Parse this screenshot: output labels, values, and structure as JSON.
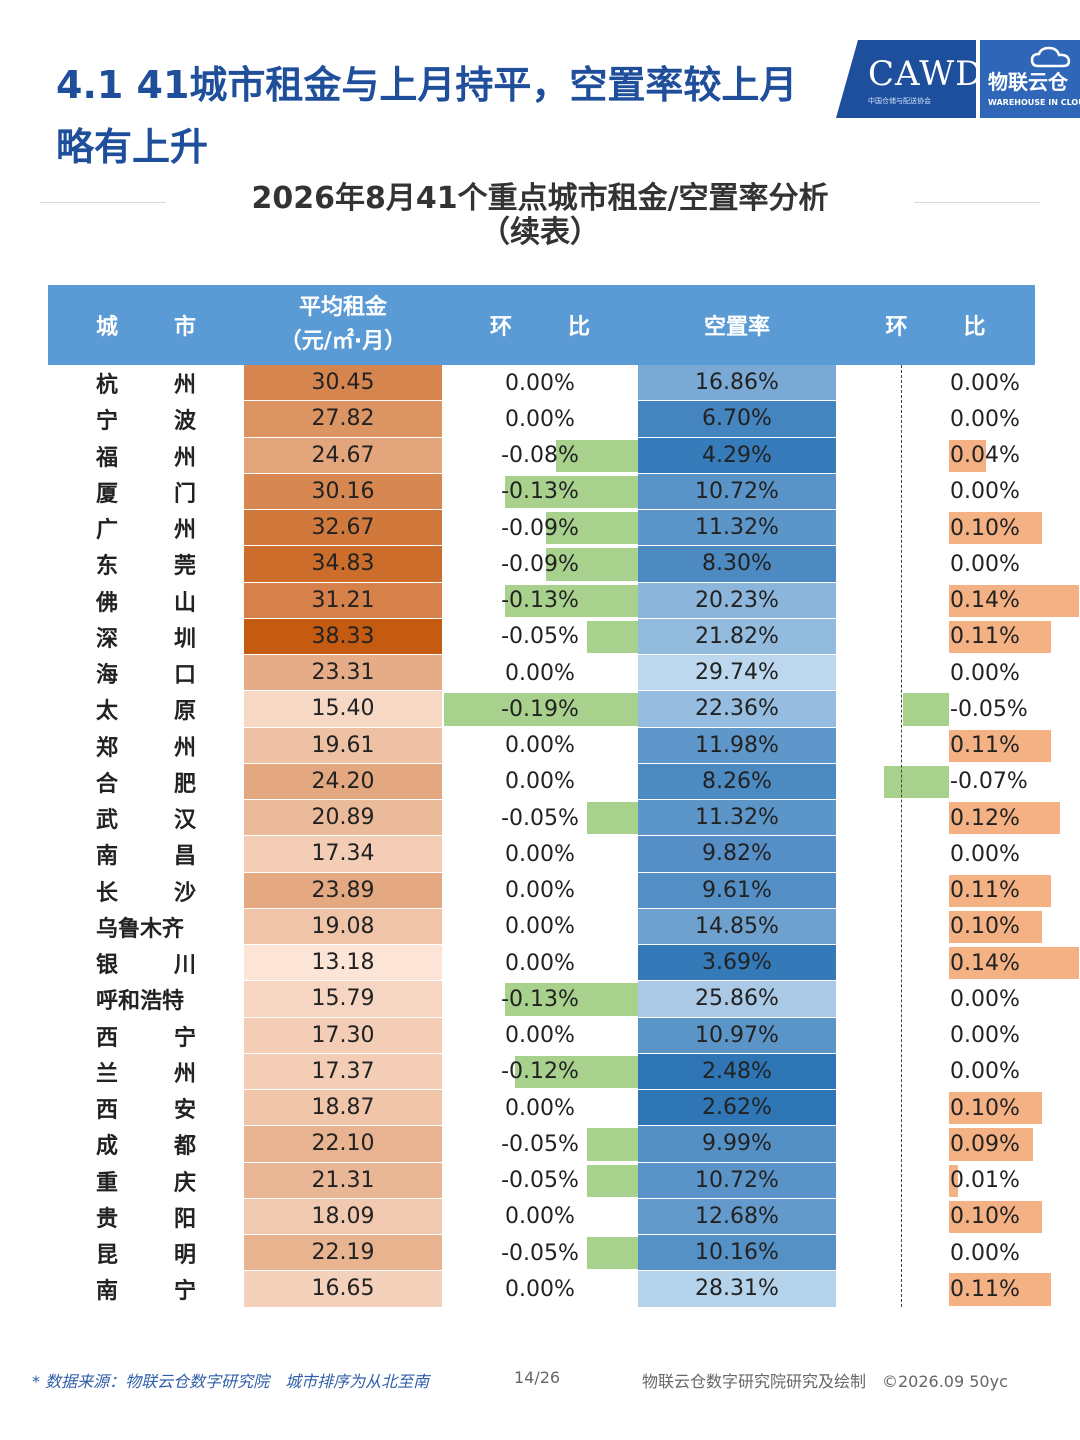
{
  "heading": "4.1 41城市租金与上月持平，空置率较上月略有上升",
  "logo": {
    "left_text": "CAWD",
    "left_sub": "中国仓储与配送协会",
    "right_text": "物联云仓",
    "right_sub": "WAREHOUSE IN CLOUD"
  },
  "subtitle_line1": "2026年8月41个重点城市租金/空置率分析",
  "subtitle_line2": "（续表）",
  "columns": {
    "city": [
      "城",
      "市"
    ],
    "rent_line1": "平均租金",
    "rent_line2": "（元/㎡·月）",
    "rent_mom": [
      "环",
      "比"
    ],
    "vacancy": "空置率",
    "vacancy_mom": [
      "环",
      "比"
    ]
  },
  "colors": {
    "header": "#5b9bd5",
    "rent_max": "#c55a11",
    "vac_min": "#2e75b6",
    "green_bar": "#a9d18e",
    "orange_bar": "#f4b183"
  },
  "rows": [
    {
      "city": [
        "杭",
        "州"
      ],
      "rent": "30.45",
      "rent_mom": "0.00%",
      "rent_mom_val": 0,
      "vacancy": "16.86%",
      "vac_mom": "0.00%",
      "vac_mom_val": 0
    },
    {
      "city": [
        "宁",
        "波"
      ],
      "rent": "27.82",
      "rent_mom": "0.00%",
      "rent_mom_val": 0,
      "vacancy": "6.70%",
      "vac_mom": "0.00%",
      "vac_mom_val": 0
    },
    {
      "city": [
        "福",
        "州"
      ],
      "rent": "24.67",
      "rent_mom": "-0.08%",
      "rent_mom_val": -0.08,
      "vacancy": "4.29%",
      "vac_mom": "0.04%",
      "vac_mom_val": 0.04
    },
    {
      "city": [
        "厦",
        "门"
      ],
      "rent": "30.16",
      "rent_mom": "-0.13%",
      "rent_mom_val": -0.13,
      "vacancy": "10.72%",
      "vac_mom": "0.00%",
      "vac_mom_val": 0
    },
    {
      "city": [
        "广",
        "州"
      ],
      "rent": "32.67",
      "rent_mom": "-0.09%",
      "rent_mom_val": -0.09,
      "vacancy": "11.32%",
      "vac_mom": "0.10%",
      "vac_mom_val": 0.1
    },
    {
      "city": [
        "东",
        "莞"
      ],
      "rent": "34.83",
      "rent_mom": "-0.09%",
      "rent_mom_val": -0.09,
      "vacancy": "8.30%",
      "vac_mom": "0.00%",
      "vac_mom_val": 0
    },
    {
      "city": [
        "佛",
        "山"
      ],
      "rent": "31.21",
      "rent_mom": "-0.13%",
      "rent_mom_val": -0.13,
      "vacancy": "20.23%",
      "vac_mom": "0.14%",
      "vac_mom_val": 0.14
    },
    {
      "city": [
        "深",
        "圳"
      ],
      "rent": "38.33",
      "rent_mom": "-0.05%",
      "rent_mom_val": -0.05,
      "vacancy": "21.82%",
      "vac_mom": "0.11%",
      "vac_mom_val": 0.11
    },
    {
      "city": [
        "海",
        "口"
      ],
      "rent": "23.31",
      "rent_mom": "0.00%",
      "rent_mom_val": 0,
      "vacancy": "29.74%",
      "vac_mom": "0.00%",
      "vac_mom_val": 0
    },
    {
      "city": [
        "太",
        "原"
      ],
      "rent": "15.40",
      "rent_mom": "-0.19%",
      "rent_mom_val": -0.19,
      "vacancy": "22.36%",
      "vac_mom": "-0.05%",
      "vac_mom_val": -0.05
    },
    {
      "city": [
        "郑",
        "州"
      ],
      "rent": "19.61",
      "rent_mom": "0.00%",
      "rent_mom_val": 0,
      "vacancy": "11.98%",
      "vac_mom": "0.11%",
      "vac_mom_val": 0.11
    },
    {
      "city": [
        "合",
        "肥"
      ],
      "rent": "24.20",
      "rent_mom": "0.00%",
      "rent_mom_val": 0,
      "vacancy": "8.26%",
      "vac_mom": "-0.07%",
      "vac_mom_val": -0.07
    },
    {
      "city": [
        "武",
        "汉"
      ],
      "rent": "20.89",
      "rent_mom": "-0.05%",
      "rent_mom_val": -0.05,
      "vacancy": "11.32%",
      "vac_mom": "0.12%",
      "vac_mom_val": 0.12
    },
    {
      "city": [
        "南",
        "昌"
      ],
      "rent": "17.34",
      "rent_mom": "0.00%",
      "rent_mom_val": 0,
      "vacancy": "9.82%",
      "vac_mom": "0.00%",
      "vac_mom_val": 0
    },
    {
      "city": [
        "长",
        "沙"
      ],
      "rent": "23.89",
      "rent_mom": "0.00%",
      "rent_mom_val": 0,
      "vacancy": "9.61%",
      "vac_mom": "0.11%",
      "vac_mom_val": 0.11
    },
    {
      "city": [
        "乌鲁木齐"
      ],
      "rent": "19.08",
      "rent_mom": "0.00%",
      "rent_mom_val": 0,
      "vacancy": "14.85%",
      "vac_mom": "0.10%",
      "vac_mom_val": 0.1
    },
    {
      "city": [
        "银",
        "川"
      ],
      "rent": "13.18",
      "rent_mom": "0.00%",
      "rent_mom_val": 0,
      "vacancy": "3.69%",
      "vac_mom": "0.14%",
      "vac_mom_val": 0.14
    },
    {
      "city": [
        "呼和浩特"
      ],
      "rent": "15.79",
      "rent_mom": "-0.13%",
      "rent_mom_val": -0.13,
      "vacancy": "25.86%",
      "vac_mom": "0.00%",
      "vac_mom_val": 0
    },
    {
      "city": [
        "西",
        "宁"
      ],
      "rent": "17.30",
      "rent_mom": "0.00%",
      "rent_mom_val": 0,
      "vacancy": "10.97%",
      "vac_mom": "0.00%",
      "vac_mom_val": 0
    },
    {
      "city": [
        "兰",
        "州"
      ],
      "rent": "17.37",
      "rent_mom": "-0.12%",
      "rent_mom_val": -0.12,
      "vacancy": "2.48%",
      "vac_mom": "0.00%",
      "vac_mom_val": 0
    },
    {
      "city": [
        "西",
        "安"
      ],
      "rent": "18.87",
      "rent_mom": "0.00%",
      "rent_mom_val": 0,
      "vacancy": "2.62%",
      "vac_mom": "0.10%",
      "vac_mom_val": 0.1
    },
    {
      "city": [
        "成",
        "都"
      ],
      "rent": "22.10",
      "rent_mom": "-0.05%",
      "rent_mom_val": -0.05,
      "vacancy": "9.99%",
      "vac_mom": "0.09%",
      "vac_mom_val": 0.09
    },
    {
      "city": [
        "重",
        "庆"
      ],
      "rent": "21.31",
      "rent_mom": "-0.05%",
      "rent_mom_val": -0.05,
      "vacancy": "10.72%",
      "vac_mom": "0.01%",
      "vac_mom_val": 0.01
    },
    {
      "city": [
        "贵",
        "阳"
      ],
      "rent": "18.09",
      "rent_mom": "0.00%",
      "rent_mom_val": 0,
      "vacancy": "12.68%",
      "vac_mom": "0.10%",
      "vac_mom_val": 0.1
    },
    {
      "city": [
        "昆",
        "明"
      ],
      "rent": "22.19",
      "rent_mom": "-0.05%",
      "rent_mom_val": -0.05,
      "vacancy": "10.16%",
      "vac_mom": "0.00%",
      "vac_mom_val": 0
    },
    {
      "city": [
        "南",
        "宁"
      ],
      "rent": "16.65",
      "rent_mom": "0.00%",
      "rent_mom_val": 0,
      "vacancy": "28.31%",
      "vac_mom": "0.11%",
      "vac_mom_val": 0.11
    }
  ],
  "footer": {
    "source": "* 数据来源：物联云仓数字研究院　城市排序为从北至南",
    "page": "14/26",
    "right": "物联云仓数字研究院研究及绘制　©2026.09 50yc"
  }
}
